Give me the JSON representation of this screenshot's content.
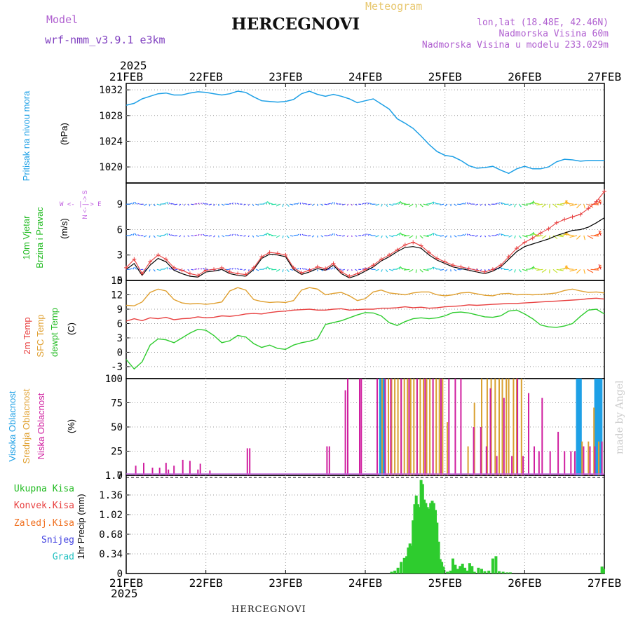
{
  "header": {
    "model_label": "Model",
    "model_name": "wrf-nmm_v3.9.1 e3km",
    "title": "HERCEGNOVI",
    "meteogram": "Meteogram",
    "coords": "lon,lat (18.48E, 42.46N)",
    "altitude": "Nadmorska Visina 60m",
    "model_altitude": "Nadmorska Visina u modelu 233.029m",
    "footer_title": "HERCEGNOVI",
    "watermark": "made by Angel",
    "year_top": "2025",
    "year_bottom": "2025"
  },
  "colors": {
    "pressure": "#1ea0e6",
    "temp2m": "#e84040",
    "sfc": "#e0a030",
    "dewpt": "#2ecc2e",
    "wind_obs": "#e84040",
    "wind_obs2": "#000000",
    "cloud_high": "#1ea0e6",
    "cloud_mid": "#d9a030",
    "cloud_low": "#d020a0",
    "precip": "#2ecc2e",
    "label_pressure": "#1ea0e6",
    "label_wind": "#22bb22",
    "label_cloud_high": "#1ea0e6",
    "label_cloud_mid": "#e0a030",
    "label_cloud_low": "#d020a0",
    "label_axis": "#c060e0"
  },
  "labels": {
    "pressure_ylabel": "Pritisak na nivou mora",
    "pressure_unit": "(hPa)",
    "wind_ylabel1": "10m Vjetar",
    "wind_ylabel2": "Brzina i Pravac",
    "wind_unit": "(m/s)",
    "wind_compass_ns": "N <- | -> S",
    "wind_compass_we": "W <- | -> E",
    "temp_l1": "2m Temp",
    "temp_l2": "SFC Temp",
    "temp_l3": "dewpt Temp",
    "temp_unit": "(C)",
    "cloud_l1": "Visoka Oblacnost",
    "cloud_l2": "Srednja Oblacnost",
    "cloud_l3": "Niska Oblacnost",
    "cloud_unit": "(%)",
    "precip_unit": "1hr Precip (mm)",
    "legend": [
      "Ukupna Kisa",
      "Konvek.Kisa",
      "Zaledj.Kisa",
      "Snijeg",
      "Grad"
    ],
    "legend_colors": [
      "#22bb22",
      "#e84040",
      "#f07020",
      "#4040e0",
      "#20c0c0"
    ]
  },
  "chart_data": {
    "type": "meteogram",
    "x_dates": [
      "21FEB",
      "22FEB",
      "23FEB",
      "24FEB",
      "25FEB",
      "26FEB",
      "27FEB"
    ],
    "panels": [
      {
        "name": "pressure",
        "type": "line",
        "ylabel": "Pritisak na nivou mora (hPa)",
        "ylim": [
          1017.5,
          1033
        ],
        "yticks": [
          1020,
          1024,
          1028,
          1032
        ],
        "x_days": [
          0,
          0.1,
          0.2,
          0.3,
          0.4,
          0.5,
          0.6,
          0.7,
          0.8,
          0.9,
          1.0,
          1.1,
          1.2,
          1.3,
          1.4,
          1.5,
          1.6,
          1.7,
          1.8,
          1.9,
          2.0,
          2.1,
          2.2,
          2.3,
          2.4,
          2.5,
          2.6,
          2.7,
          2.8,
          2.9,
          3.0,
          3.1,
          3.2,
          3.3,
          3.4,
          3.5,
          3.6,
          3.7,
          3.8,
          3.9,
          4.0,
          4.1,
          4.2,
          4.3,
          4.4,
          4.5,
          4.6,
          4.7,
          4.8,
          4.9,
          5.0,
          5.1,
          5.2,
          5.3,
          5.4,
          5.5,
          5.6,
          5.7,
          5.8,
          5.9,
          6.0
        ],
        "values": [
          1029.6,
          1029.9,
          1030.6,
          1031.0,
          1031.4,
          1031.5,
          1031.2,
          1031.2,
          1031.5,
          1031.7,
          1031.6,
          1031.4,
          1031.2,
          1031.4,
          1031.8,
          1031.6,
          1030.9,
          1030.3,
          1030.2,
          1030.1,
          1030.2,
          1030.5,
          1031.4,
          1031.8,
          1031.3,
          1031.0,
          1031.3,
          1031.0,
          1030.6,
          1030.0,
          1030.3,
          1030.6,
          1029.8,
          1029.0,
          1027.5,
          1026.8,
          1026.0,
          1024.8,
          1023.5,
          1022.4,
          1021.8,
          1021.6,
          1021.0,
          1020.2,
          1019.8,
          1019.9,
          1020.1,
          1019.5,
          1019.0,
          1019.7,
          1020.1,
          1019.7,
          1019.7,
          1020.0,
          1020.8,
          1021.2,
          1021.1,
          1020.9,
          1021.0,
          1021.0,
          1021.0
        ]
      },
      {
        "name": "wind",
        "type": "line",
        "ylabel": "10m Vjetar Brzina i Pravac (m/s)",
        "ylim": [
          0,
          11.5
        ],
        "yticks": [
          0,
          3,
          6,
          9
        ],
        "x_days": [
          0,
          0.1,
          0.2,
          0.3,
          0.4,
          0.5,
          0.6,
          0.7,
          0.8,
          0.9,
          1.0,
          1.1,
          1.2,
          1.3,
          1.4,
          1.5,
          1.6,
          1.7,
          1.8,
          1.9,
          2.0,
          2.1,
          2.2,
          2.3,
          2.4,
          2.5,
          2.6,
          2.7,
          2.8,
          2.9,
          3.0,
          3.1,
          3.2,
          3.3,
          3.4,
          3.5,
          3.6,
          3.7,
          3.8,
          3.9,
          4.0,
          4.1,
          4.2,
          4.3,
          4.4,
          4.5,
          4.6,
          4.7,
          4.8,
          4.9,
          5.0,
          5.1,
          5.2,
          5.3,
          5.4,
          5.5,
          5.6,
          5.7,
          5.8,
          5.9,
          6.0
        ],
        "series": [
          {
            "name": "speed_gust",
            "values": [
              1.5,
              2.5,
              0.8,
              2.2,
              3.0,
              2.5,
              1.5,
              1.2,
              0.8,
              0.6,
              1.2,
              1.3,
              1.5,
              1.0,
              0.8,
              0.7,
              1.5,
              2.8,
              3.3,
              3.2,
              3.0,
              1.5,
              0.9,
              1.2,
              1.6,
              1.4,
              2.0,
              1.0,
              0.5,
              0.8,
              1.3,
              1.8,
              2.5,
              3.0,
              3.6,
              4.2,
              4.5,
              4.1,
              3.3,
              2.6,
              2.2,
              1.8,
              1.6,
              1.4,
              1.2,
              1.0,
              1.3,
              1.8,
              2.8,
              3.8,
              4.5,
              5.0,
              5.6,
              6.1,
              6.8,
              7.2,
              7.5,
              7.8,
              8.5,
              9.3,
              10.5
            ]
          },
          {
            "name": "speed_mean",
            "values": [
              1.3,
              2.0,
              0.6,
              1.8,
              2.6,
              2.2,
              1.2,
              0.8,
              0.5,
              0.4,
              1.0,
              1.1,
              1.3,
              0.8,
              0.6,
              0.5,
              1.3,
              2.6,
              3.1,
              3.0,
              2.8,
              1.3,
              0.7,
              1.0,
              1.4,
              1.2,
              1.8,
              0.8,
              0.3,
              0.6,
              1.1,
              1.6,
              2.3,
              2.8,
              3.4,
              3.9,
              4.0,
              3.8,
              3.0,
              2.4,
              2.0,
              1.6,
              1.4,
              1.2,
              1.0,
              0.8,
              1.1,
              1.6,
              2.5,
              3.4,
              4.0,
              4.3,
              4.6,
              4.9,
              5.3,
              5.6,
              5.9,
              6.0,
              6.3,
              6.8,
              7.4
            ]
          }
        ],
        "wind_rows_ms": [
          9,
          5.3,
          1.3
        ]
      },
      {
        "name": "temperature",
        "type": "line",
        "ylabel": "2m Temp / SFC Temp / dewpt Temp (C)",
        "ylim": [
          -5.5,
          15
        ],
        "yticks": [
          -3,
          0,
          3,
          6,
          9,
          12,
          15
        ],
        "x_days": [
          0,
          0.1,
          0.2,
          0.3,
          0.4,
          0.5,
          0.6,
          0.7,
          0.8,
          0.9,
          1.0,
          1.1,
          1.2,
          1.3,
          1.4,
          1.5,
          1.6,
          1.7,
          1.8,
          1.9,
          2.0,
          2.1,
          2.2,
          2.3,
          2.4,
          2.5,
          2.6,
          2.7,
          2.8,
          2.9,
          3.0,
          3.1,
          3.2,
          3.3,
          3.4,
          3.5,
          3.6,
          3.7,
          3.8,
          3.9,
          4.0,
          4.1,
          4.2,
          4.3,
          4.4,
          4.5,
          4.6,
          4.7,
          4.8,
          4.9,
          5.0,
          5.1,
          5.2,
          5.3,
          5.4,
          5.5,
          5.6,
          5.7,
          5.8,
          5.9,
          6.0
        ],
        "series": [
          {
            "name": "2m Temp",
            "values": [
              6.5,
              7.0,
              6.6,
              7.2,
              7.0,
              7.3,
              6.8,
              7.0,
              7.1,
              7.4,
              7.2,
              7.3,
              7.6,
              7.5,
              7.7,
              8.0,
              8.1,
              8.0,
              8.3,
              8.5,
              8.6,
              8.8,
              8.9,
              9.0,
              8.8,
              8.8,
              9.0,
              9.1,
              8.8,
              8.9,
              9.0,
              9.0,
              9.2,
              9.2,
              9.3,
              9.5,
              9.3,
              9.4,
              9.2,
              9.3,
              9.5,
              9.6,
              9.7,
              9.9,
              9.8,
              9.9,
              10.0,
              10.1,
              10.2,
              10.2,
              10.3,
              10.4,
              10.5,
              10.6,
              10.7,
              10.8,
              10.9,
              11.0,
              11.2,
              11.3,
              11.1
            ]
          },
          {
            "name": "SFC Temp",
            "values": [
              9.8,
              9.7,
              10.5,
              12.5,
              13.2,
              12.8,
              11.0,
              10.3,
              10.1,
              10.2,
              10.0,
              10.2,
              10.5,
              12.8,
              13.5,
              13.0,
              11.0,
              10.6,
              10.4,
              10.5,
              10.4,
              10.8,
              13.0,
              13.5,
              13.2,
              12.0,
              12.3,
              12.5,
              11.8,
              10.8,
              11.2,
              12.6,
              13.0,
              12.4,
              12.2,
              12.0,
              12.4,
              12.6,
              12.6,
              12.0,
              11.8,
              12.0,
              12.4,
              12.5,
              12.2,
              11.9,
              11.8,
              12.2,
              12.3,
              12.0,
              12.1,
              12.0,
              12.1,
              12.2,
              12.4,
              12.9,
              13.2,
              12.8,
              12.5,
              12.6,
              12.4
            ]
          },
          {
            "name": "dewpt Temp",
            "values": [
              -1.5,
              -3.5,
              -2.0,
              1.5,
              2.8,
              2.6,
              2.0,
              3.0,
              4.0,
              4.8,
              4.6,
              3.5,
              2.0,
              2.4,
              3.5,
              3.2,
              1.8,
              1.0,
              1.5,
              0.8,
              0.6,
              1.5,
              2.0,
              2.3,
              2.8,
              5.8,
              6.2,
              6.6,
              7.2,
              7.8,
              8.3,
              8.2,
              7.6,
              6.2,
              5.6,
              6.4,
              7.0,
              7.2,
              7.0,
              7.2,
              7.6,
              8.3,
              8.4,
              8.2,
              7.8,
              7.4,
              7.3,
              7.6,
              8.6,
              8.8,
              8.0,
              7.0,
              5.7,
              5.3,
              5.2,
              5.5,
              6.0,
              7.5,
              8.8,
              9.0,
              8.0
            ]
          }
        ]
      },
      {
        "name": "clouds",
        "type": "bar",
        "ylabel": "Visoka / Srednja / Niska Oblacnost (%)",
        "ylim": [
          0,
          100
        ],
        "yticks": [
          0,
          25,
          50,
          75,
          100
        ],
        "bar_width_days": 0.012,
        "series": [
          {
            "name": "Visoka Oblacnost",
            "x_days": [
              3.2,
              3.21,
              3.22,
              5.67,
              5.68,
              5.69,
              5.9,
              5.91,
              5.95
            ],
            "values": [
              100,
              100,
              100,
              100,
              100,
              100,
              100,
              100,
              100
            ]
          },
          {
            "name": "Srednja Oblacnost",
            "x_days": [
              3.21,
              3.29,
              3.33,
              3.37,
              3.41,
              3.45,
              3.49,
              3.53,
              3.57,
              3.61,
              3.65,
              3.69,
              3.73,
              3.77,
              3.81,
              3.85,
              3.89,
              3.93,
              3.97,
              4.03,
              4.29,
              4.37,
              4.46,
              4.53,
              4.58,
              4.63,
              4.68,
              4.72,
              4.77,
              4.8,
              4.86,
              4.9,
              4.96,
              5.72,
              5.8,
              5.87,
              5.93
            ],
            "values": [
              100,
              100,
              100,
              100,
              100,
              100,
              100,
              100,
              100,
              100,
              100,
              100,
              100,
              100,
              100,
              100,
              100,
              100,
              100,
              55,
              30,
              75,
              100,
              100,
              100,
              100,
              100,
              100,
              100,
              100,
              100,
              100,
              100,
              35,
              35,
              70,
              35
            ]
          },
          {
            "name": "Niska Oblacnost",
            "x_days": [
              0.12,
              0.22,
              0.33,
              0.42,
              0.5,
              0.53,
              0.6,
              0.71,
              0.8,
              0.9,
              0.93,
              1.05,
              1.52,
              1.55,
              2.52,
              2.55,
              2.75,
              2.78,
              2.93,
              2.95,
              3.15,
              3.25,
              3.32,
              3.45,
              3.55,
              3.65,
              3.75,
              3.85,
              3.95,
              4.05,
              4.13,
              4.2,
              4.36,
              4.45,
              4.52,
              4.57,
              4.65,
              4.74,
              4.84,
              4.91,
              4.98,
              5.05,
              5.12,
              5.18,
              5.22,
              5.32,
              5.42,
              5.5,
              5.58,
              5.63,
              5.74,
              5.82,
              5.88,
              5.97
            ],
            "values": [
              10,
              13,
              8,
              8,
              13,
              6,
              10,
              16,
              15,
              6,
              12,
              5,
              28,
              28,
              30,
              30,
              88,
              100,
              100,
              100,
              100,
              100,
              100,
              100,
              100,
              100,
              100,
              100,
              100,
              100,
              100,
              100,
              50,
              50,
              30,
              90,
              20,
              80,
              20,
              100,
              20,
              85,
              30,
              25,
              80,
              25,
              45,
              25,
              25,
              25,
              30,
              30,
              30,
              35
            ]
          }
        ]
      },
      {
        "name": "precipitation",
        "type": "bar",
        "ylabel": "1hr Precip (mm)",
        "ylim": [
          0,
          1.7
        ],
        "yticks": [
          0,
          0.34,
          0.68,
          1.02,
          1.36,
          1.7
        ],
        "x_days": [
          3.33,
          3.37,
          3.41,
          3.45,
          3.49,
          3.52,
          3.54,
          3.56,
          3.58,
          3.6,
          3.62,
          3.64,
          3.66,
          3.68,
          3.7,
          3.72,
          3.74,
          3.76,
          3.78,
          3.8,
          3.82,
          3.84,
          3.86,
          3.88,
          3.9,
          3.92,
          3.94,
          3.96,
          3.98,
          4.03,
          4.07,
          4.1,
          4.13,
          4.16,
          4.19,
          4.22,
          4.25,
          4.28,
          4.31,
          4.34,
          4.37,
          4.42,
          4.46,
          4.5,
          4.55,
          4.6,
          4.64,
          4.68,
          4.73,
          4.78,
          4.82,
          5.97,
          5.99
        ],
        "values": [
          0.03,
          0.05,
          0.1,
          0.2,
          0.27,
          0.3,
          0.45,
          0.52,
          0.48,
          0.92,
          1.2,
          1.35,
          1.2,
          1.15,
          1.62,
          1.55,
          1.28,
          1.22,
          1.15,
          1.12,
          1.22,
          1.26,
          1.22,
          1.1,
          0.88,
          0.55,
          0.25,
          0.2,
          0.12,
          0.03,
          0.05,
          0.26,
          0.15,
          0.08,
          0.13,
          0.17,
          0.1,
          0.05,
          0.18,
          0.13,
          0.03,
          0.1,
          0.08,
          0.04,
          0.05,
          0.26,
          0.3,
          0.04,
          0.03,
          0.02,
          0.02,
          0.12,
          0.08
        ]
      }
    ]
  }
}
